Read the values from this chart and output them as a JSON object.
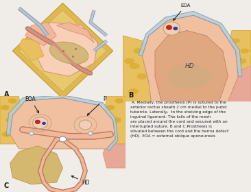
{
  "background_color": "#f0ede8",
  "caption_text": " A. Medially, the prosthesis (P) is sutured to the\nanterior rectus sheath 2 cm medial to the pubic\ntubercle. Laterally,  to the shelving edge of the\ninguinal ligament. The tails of the mesh\nare placed around the cord and secured with an\ninterrupted suture. B and C.Prosthesis is\nsituated between the cord and the hernia defect\n(HD). EOA = external oblique aponeurosis",
  "label_A": "A",
  "label_B": "B",
  "label_C": "C",
  "fig_width": 3.66,
  "fig_height": 2.8,
  "dpi": 100,
  "colors": {
    "fat_yellow": "#e8c060",
    "fat_yellow2": "#d4a830",
    "pink_tissue": "#f0b898",
    "pink_dark": "#d4907a",
    "pink_light": "#f8d0b8",
    "skin_peach": "#f4c8a0",
    "blue_mesh": "#b8ccd8",
    "blue_mesh_edge": "#7898b0",
    "hernia_tan": "#c8a870",
    "hernia_light": "#d8bc8a",
    "cord_brown": "#b87860",
    "cord_pink": "#d49080",
    "retractor_gray": "#90a0b0",
    "retractor_light": "#b8c8d8",
    "text_dark": "#111111",
    "white": "#ffffff",
    "red_dot": "#cc2222",
    "blue_dot": "#2244bb",
    "suture_white": "#f0f0f0",
    "muscle_pink": "#e8a898"
  }
}
